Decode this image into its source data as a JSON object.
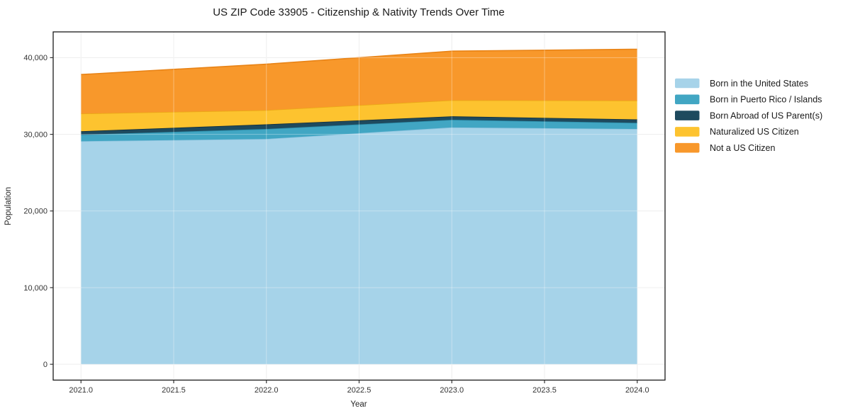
{
  "page": {
    "background": "#ffffff"
  },
  "axes": {
    "spine_color": "#1a1a1a",
    "tick_color": "#333333",
    "grid_color": "#e7e7e7",
    "grid_overlay_color": "rgba(255,255,255,0.35)"
  },
  "chart_data": {
    "type": "area",
    "stacked": true,
    "title": "US ZIP Code 33905 - Citizenship & Nativity Trends Over Time",
    "xlabel": "Year",
    "ylabel": "Population",
    "x": [
      2021,
      2022,
      2023,
      2024
    ],
    "x_ticks": [
      2021.0,
      2021.5,
      2022.0,
      2022.5,
      2023.0,
      2023.5,
      2024.0
    ],
    "x_tick_labels": [
      "2021.0",
      "2021.5",
      "2022.0",
      "2022.5",
      "2023.0",
      "2023.5",
      "2024.0"
    ],
    "y_ticks": [
      0,
      10000,
      20000,
      30000,
      40000
    ],
    "y_tick_labels": [
      "0",
      "10,000",
      "20,000",
      "30,000",
      "40,000"
    ],
    "xlim": [
      2020.85,
      2024.15
    ],
    "ylim": [
      -2065,
      43365
    ],
    "grid": true,
    "legend_position": "right-outside",
    "series": [
      {
        "name": "Born in the United States",
        "color": "#a6d3e9",
        "edge_color": "#8cc3de",
        "values": [
          29100,
          29400,
          30900,
          30700
        ]
      },
      {
        "name": "Born in Puerto Rico / Islands",
        "color": "#41a6c3",
        "edge_color": "#2b8aa6",
        "values": [
          850,
          1300,
          1000,
          800
        ]
      },
      {
        "name": "Born Abroad of US Parent(s)",
        "color": "#1e4a5e",
        "edge_color": "#132f3d",
        "values": [
          450,
          600,
          450,
          450
        ]
      },
      {
        "name": "Naturalized US Citizen",
        "color": "#fdc32f",
        "edge_color": "#eba916",
        "values": [
          2300,
          1850,
          2100,
          2450
        ]
      },
      {
        "name": "Not a US Citizen",
        "color": "#f8982b",
        "edge_color": "#e88316",
        "values": [
          5100,
          6000,
          6400,
          6700
        ]
      }
    ]
  }
}
